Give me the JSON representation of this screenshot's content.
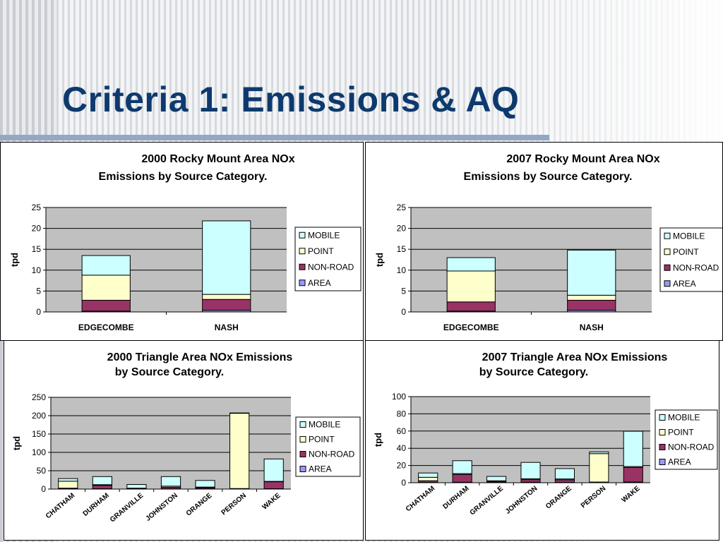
{
  "slide": {
    "title": "Criteria 1: Emissions & AQ"
  },
  "colors": {
    "plot_bg": "#c0c0c0",
    "mobile": "#ccffff",
    "point": "#ffffcc",
    "non_road": "#993366",
    "area": "#9999ff"
  },
  "legend_labels": [
    "MOBILE",
    "POINT",
    "NON-ROAD",
    "AREA"
  ],
  "chart_data": [
    {
      "id": "rocky-2000",
      "type": "bar",
      "stacked": true,
      "title_lines": [
        "2000 Rocky Mount Area NOx",
        "Emissions by Source Category."
      ],
      "ylabel": "tpd",
      "ylim": [
        0,
        25
      ],
      "yticks": [
        0,
        5,
        10,
        15,
        20,
        25
      ],
      "grid": true,
      "legend": "right",
      "categories": [
        "EDGECOMBE",
        "NASH"
      ],
      "series": [
        {
          "name": "AREA",
          "values": [
            0.2,
            0.4
          ]
        },
        {
          "name": "NON-ROAD",
          "values": [
            2.6,
            2.6
          ]
        },
        {
          "name": "POINT",
          "values": [
            6.0,
            1.2
          ]
        },
        {
          "name": "MOBILE",
          "values": [
            4.7,
            17.6
          ]
        }
      ]
    },
    {
      "id": "rocky-2007",
      "type": "bar",
      "stacked": true,
      "title_lines": [
        "2007 Rocky Mount Area NOx",
        "Emissions by Source Category."
      ],
      "ylabel": "tpd",
      "ylim": [
        0,
        25
      ],
      "yticks": [
        0,
        5,
        10,
        15,
        20,
        25
      ],
      "grid": true,
      "legend": "right",
      "categories": [
        "EDGECOMBE",
        "NASH"
      ],
      "series": [
        {
          "name": "AREA",
          "values": [
            0.2,
            0.4
          ]
        },
        {
          "name": "NON-ROAD",
          "values": [
            2.2,
            2.4
          ]
        },
        {
          "name": "POINT",
          "values": [
            7.4,
            1.2
          ]
        },
        {
          "name": "MOBILE",
          "values": [
            3.2,
            10.8
          ]
        }
      ]
    },
    {
      "id": "triangle-2000",
      "type": "bar",
      "stacked": true,
      "title_lines": [
        "2000 Triangle Area NOx Emissions",
        "by Source Category."
      ],
      "ylabel": "tpd",
      "ylim": [
        0,
        250
      ],
      "yticks": [
        0,
        50,
        100,
        150,
        200,
        250
      ],
      "grid": true,
      "legend": "right",
      "categories": [
        "CHATHAM",
        "DURHAM",
        "GRANVILLE",
        "JOHNSTON",
        "ORANGE",
        "PERSON",
        "WAKE"
      ],
      "series": [
        {
          "name": "AREA",
          "values": [
            0.5,
            1,
            0.5,
            1,
            0.5,
            0.5,
            1
          ]
        },
        {
          "name": "NON-ROAD",
          "values": [
            2,
            9,
            1,
            4,
            3,
            1,
            19
          ]
        },
        {
          "name": "POINT",
          "values": [
            19,
            2,
            1,
            3,
            2,
            205,
            1
          ]
        },
        {
          "name": "MOBILE",
          "values": [
            7,
            22,
            10,
            26,
            18,
            1,
            61
          ]
        }
      ]
    },
    {
      "id": "triangle-2007",
      "type": "bar",
      "stacked": true,
      "title_lines": [
        "2007 Triangle Area NOx Emissions",
        "by Source Category."
      ],
      "ylabel": "tpd",
      "ylim": [
        0,
        100
      ],
      "yticks": [
        0,
        20,
        40,
        60,
        80,
        100
      ],
      "grid": true,
      "legend": "right",
      "categories": [
        "CHATHAM",
        "DURHAM",
        "GRANVILLE",
        "JOHNSTON",
        "ORANGE",
        "PERSON",
        "WAKE"
      ],
      "series": [
        {
          "name": "AREA",
          "values": [
            0.3,
            0.6,
            0.3,
            0.6,
            0.4,
            0.3,
            0.8
          ]
        },
        {
          "name": "NON-ROAD",
          "values": [
            2,
            9,
            1,
            3,
            3,
            0.5,
            17
          ]
        },
        {
          "name": "POINT",
          "values": [
            4,
            1,
            1,
            1,
            1,
            33,
            1
          ]
        },
        {
          "name": "MOBILE",
          "values": [
            5,
            15,
            5,
            19,
            12,
            2,
            41
          ]
        }
      ]
    }
  ]
}
